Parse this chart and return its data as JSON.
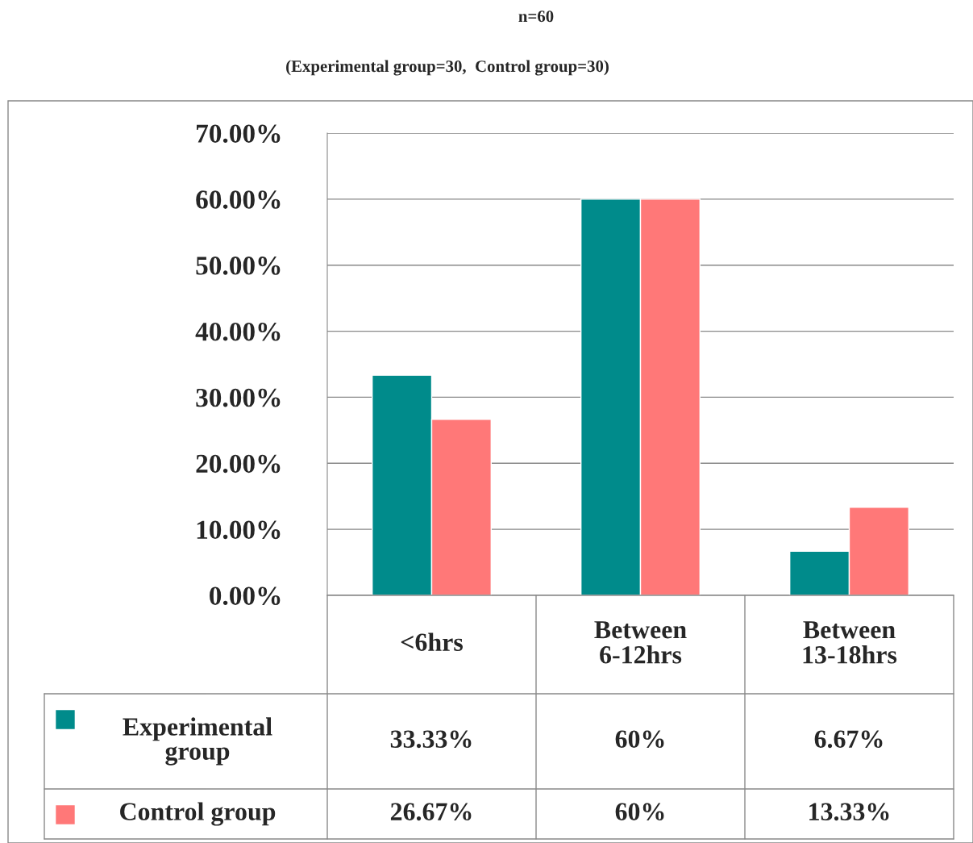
{
  "chart_data": {
    "type": "bar",
    "title": "n=60",
    "subtitle": "(Experimental group=30,  Control group=30)",
    "categories": [
      "<6hrs",
      "Between 6-12hrs",
      "Between 13-18hrs"
    ],
    "series": [
      {
        "name": "Experimental group",
        "color": "#008b8b",
        "values": [
          33.33,
          60,
          6.67
        ],
        "value_labels": [
          "33.33%",
          "60%",
          "6.67%"
        ]
      },
      {
        "name": "Control group",
        "color": "#ff7878",
        "values": [
          26.67,
          60,
          13.33
        ],
        "value_labels": [
          "26.67%",
          "60%",
          "13.33%"
        ]
      }
    ],
    "ylim": [
      0,
      70
    ],
    "yticks": [
      {
        "value": 0,
        "label": "0.00%"
      },
      {
        "value": 10,
        "label": "10.00%"
      },
      {
        "value": 20,
        "label": "20.00%"
      },
      {
        "value": 30,
        "label": "30.00%"
      },
      {
        "value": 40,
        "label": "40.00%"
      },
      {
        "value": 50,
        "label": "50.00%"
      },
      {
        "value": 60,
        "label": "60.00%"
      },
      {
        "value": 70,
        "label": "70.00%"
      }
    ],
    "grid": "y",
    "legend": "bottom left"
  }
}
